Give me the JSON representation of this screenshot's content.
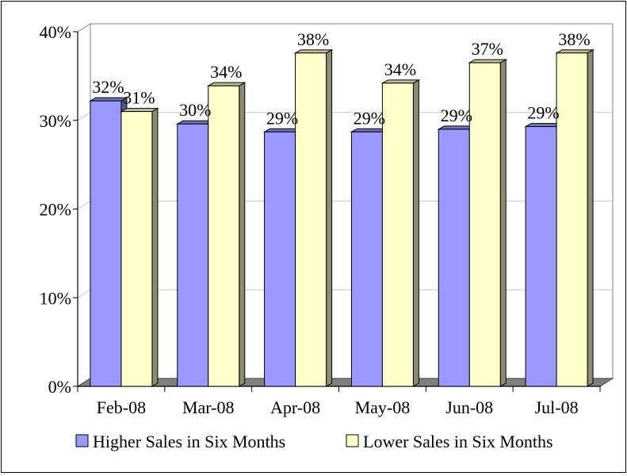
{
  "chart_data": {
    "type": "bar",
    "style": "3d-clustered-column",
    "categories": [
      "Feb-08",
      "Mar-08",
      "Apr-08",
      "May-08",
      "Jun-08",
      "Jul-08"
    ],
    "series": [
      {
        "name": "Higher Sales in Six Months",
        "values": [
          32.2,
          29.6,
          28.7,
          28.7,
          29.0,
          29.3
        ],
        "labels": [
          "32%",
          "30%",
          "29%",
          "29%",
          "29%",
          "29%"
        ],
        "color": "#9999ff"
      },
      {
        "name": "Lower Sales in Six Months",
        "values": [
          31.0,
          33.9,
          37.6,
          34.2,
          36.5,
          37.6
        ],
        "labels": [
          "31%",
          "34%",
          "38%",
          "34%",
          "37%",
          "38%"
        ],
        "color": "#ffffcc"
      }
    ],
    "yticks": [
      "0%",
      "10%",
      "20%",
      "30%",
      "40%"
    ],
    "ylim": [
      0,
      40
    ],
    "grid": true,
    "legend": "bottom"
  }
}
